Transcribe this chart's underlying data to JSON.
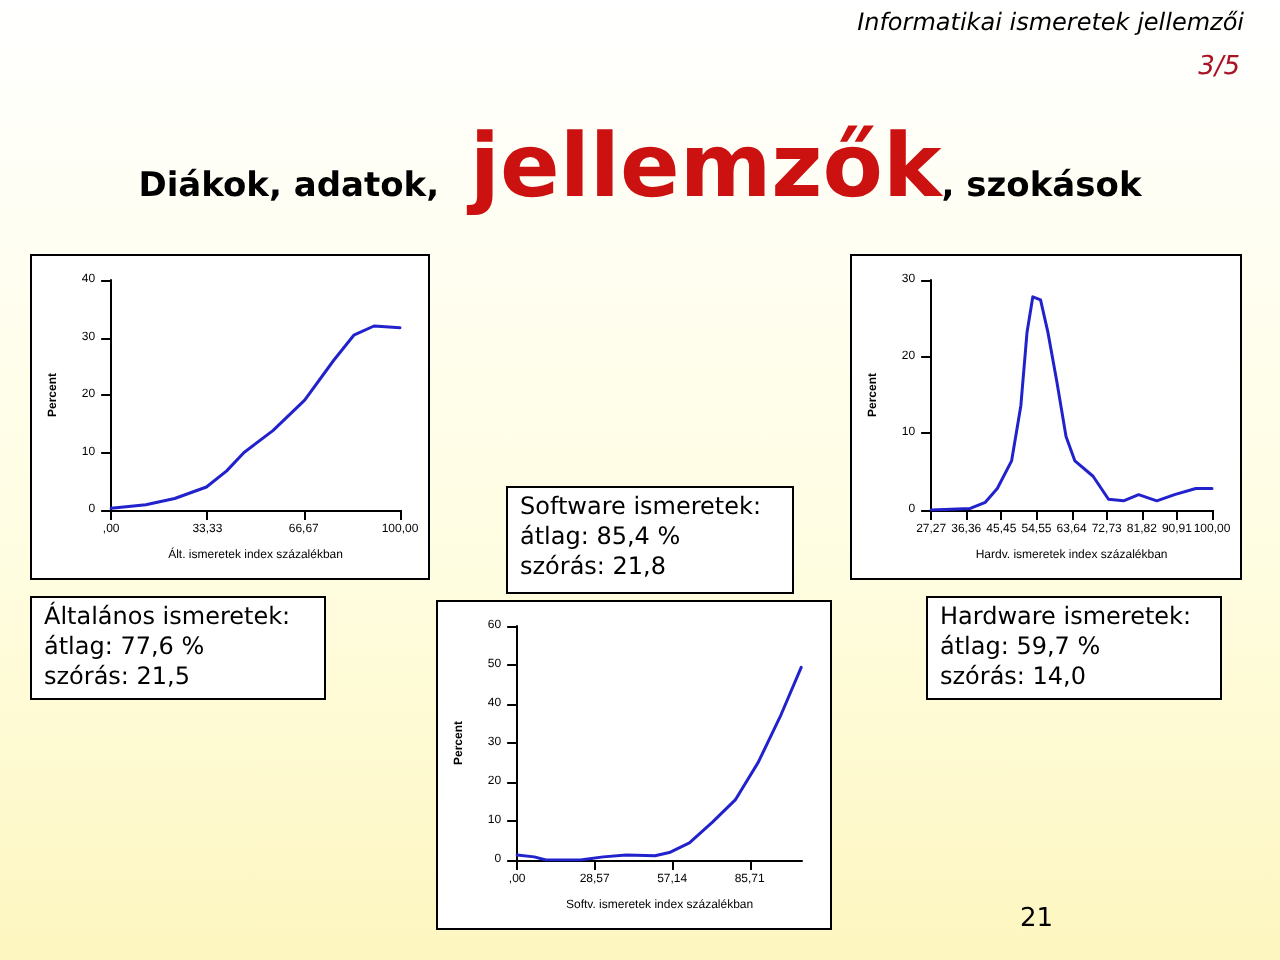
{
  "chart_data": [
    {
      "type": "other",
      "title": "Diákok, adatok, jellemzők, szokások",
      "annotations": [
        "Informatikai ismeretek jellemzői",
        "3/5",
        "21"
      ]
    },
    {
      "type": "line",
      "xlabel": "Ált. ismeretek index százalékban",
      "ylabel": "Percent",
      "annotations": [
        "Általános ismeretek:\nátlag: 77,6 %\nszórás: 21,5"
      ],
      "series": [
        {
          "color": "#2222cc",
          "x": [
            0,
            12,
            22,
            33,
            40,
            46,
            56,
            67,
            77,
            84,
            91,
            100
          ],
          "values": [
            0.3,
            0.9,
            2,
            4,
            6.8,
            10,
            13.8,
            19.1,
            26,
            30.4,
            32,
            31.7
          ]
        }
      ],
      "xlim": [
        0,
        100
      ],
      "xticks": [
        {
          "value": 0,
          "label": ",00"
        },
        {
          "value": 33.33,
          "label": "33,33"
        },
        {
          "value": 66.67,
          "label": "66,67"
        },
        {
          "value": 100,
          "label": "100,00"
        }
      ],
      "ylim": [
        0,
        40
      ],
      "yticks": [
        0,
        10,
        20,
        30,
        40
      ],
      "marker": "none",
      "line_style": "solid",
      "grid": false
    },
    {
      "type": "line",
      "xlabel": "Hardv. ismeretek index százalékban",
      "ylabel": "Percent",
      "annotations": [
        "Hardware ismeretek:\nátlag: 59,7 %\nszórás: 14,0"
      ],
      "series": [
        {
          "color": "#2222cc",
          "x": [
            27.27,
            37.4,
            41.3,
            44.4,
            48.1,
            50.5,
            52.1,
            53.6,
            55.6,
            57.5,
            59.8,
            62.2,
            64.5,
            69.2,
            73.2,
            77.1,
            81,
            85.7,
            90.3,
            95.8,
            100
          ],
          "values": [
            0,
            0.2,
            1,
            2.8,
            6.4,
            13.6,
            23.2,
            27.8,
            27.4,
            23.2,
            16.8,
            9.6,
            6.4,
            4.4,
            1.4,
            1.2,
            2,
            1.2,
            2,
            2.8,
            2.8
          ]
        }
      ],
      "xlim": [
        27.27,
        100
      ],
      "xticks": [
        {
          "value": 27.27,
          "label": "27,27"
        },
        {
          "value": 36.36,
          "label": "36,36"
        },
        {
          "value": 45.45,
          "label": "45,45"
        },
        {
          "value": 54.55,
          "label": "54,55"
        },
        {
          "value": 63.64,
          "label": "63,64"
        },
        {
          "value": 72.73,
          "label": "72,73"
        },
        {
          "value": 81.82,
          "label": "81,82"
        },
        {
          "value": 90.91,
          "label": "90,91"
        },
        {
          "value": 100,
          "label": "100,00"
        }
      ],
      "ylim": [
        0,
        30
      ],
      "yticks": [
        0,
        10,
        20,
        30
      ],
      "marker": "none",
      "line_style": "solid",
      "grid": false
    },
    {
      "type": "line",
      "xlabel": "Softv. ismeretek index százalékban",
      "ylabel": "Percent",
      "annotations": [
        "Software ismeretek:\nátlag: 85,4 %\nszórás: 21,8"
      ],
      "series": [
        {
          "color": "#2222cc",
          "x": [
            0,
            6.3,
            10.6,
            23.3,
            31.7,
            40.2,
            50.8,
            56.1,
            63.5,
            72,
            80.4,
            88.9,
            97.3,
            104.7
          ],
          "values": [
            1.3,
            0.8,
            0,
            0,
            0.8,
            1.3,
            1.1,
            1.9,
            4.4,
            9.7,
            15.4,
            25.1,
            37.3,
            49.4
          ]
        }
      ],
      "xlim": [
        0,
        105
      ],
      "xticks": [
        {
          "value": 0,
          "label": ",00"
        },
        {
          "value": 28.57,
          "label": "28,57"
        },
        {
          "value": 57.14,
          "label": "57,14"
        },
        {
          "value": 85.71,
          "label": "85,71"
        }
      ],
      "ylim": [
        0,
        60
      ],
      "yticks": [
        0,
        10,
        20,
        30,
        40,
        50,
        60
      ],
      "marker": "none",
      "line_style": "solid",
      "grid": false
    }
  ]
}
